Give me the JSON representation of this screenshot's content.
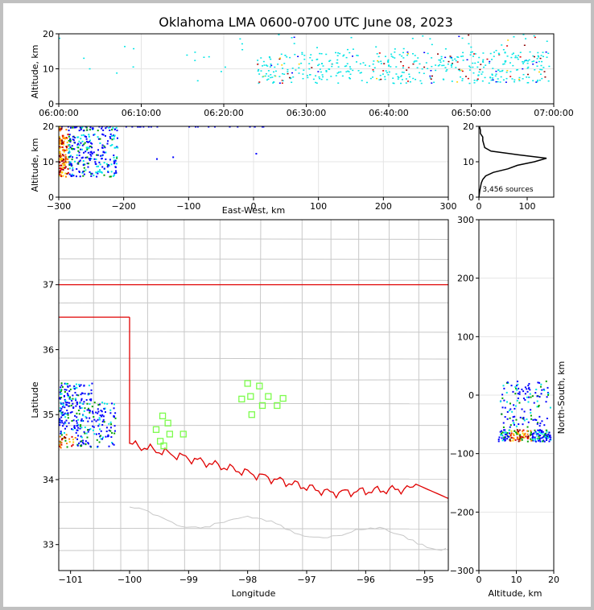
{
  "chart_data": [
    {
      "panel": "time-height",
      "type": "scatter",
      "title": "Oklahoma LMA 0600-0700 UTC June 08, 2023",
      "ylabel": "Altitude, km",
      "xlabel": "",
      "xlim": [
        "06:00:00",
        "07:00:00"
      ],
      "ylim": [
        0,
        20
      ],
      "xticks": [
        "06:00:00",
        "06:10:00",
        "06:20:00",
        "06:30:00",
        "06:40:00",
        "06:50:00",
        "07:00:00"
      ],
      "yticks": [
        "0",
        "10",
        "20"
      ],
      "grid": true,
      "points_summary": "VHF sources colored by time; sparse before 06:24, dense 06:24-06:59, altitudes mostly 6-15 km",
      "clusters": [
        {
          "t_start_min": 24,
          "t_end_min": 59.5,
          "alt_low_km": 6,
          "alt_high_km": 15
        }
      ]
    },
    {
      "panel": "east-west-height",
      "type": "scatter",
      "xlabel": "East-West, km",
      "ylabel": "Altitude, km",
      "xlim": [
        -300,
        300
      ],
      "ylim": [
        0,
        20
      ],
      "xticks": [
        "−300",
        "−200",
        "−100",
        "0",
        "100",
        "200",
        "300"
      ],
      "yticks": [
        "0",
        "10",
        "20"
      ],
      "grid": true,
      "clusters": [
        {
          "ew_start_km": -300,
          "ew_end_km": -215,
          "alt_low_km": 5,
          "alt_high_km": 20
        }
      ]
    },
    {
      "panel": "altitude-histogram",
      "type": "line",
      "xlim": [
        0,
        155
      ],
      "ylim": [
        0,
        20
      ],
      "xticks": [
        "0",
        "100"
      ],
      "yticks": [
        "0",
        "10",
        "20"
      ],
      "annotation": "3,456 sources",
      "profile": [
        {
          "alt": 0,
          "count": 0
        },
        {
          "alt": 2,
          "count": 2
        },
        {
          "alt": 4,
          "count": 5
        },
        {
          "alt": 5,
          "count": 8
        },
        {
          "alt": 6,
          "count": 14
        },
        {
          "alt": 7,
          "count": 30
        },
        {
          "alt": 8,
          "count": 60
        },
        {
          "alt": 9,
          "count": 80
        },
        {
          "alt": 10,
          "count": 115
        },
        {
          "alt": 11,
          "count": 140
        },
        {
          "alt": 12,
          "count": 80
        },
        {
          "alt": 13,
          "count": 25
        },
        {
          "alt": 14,
          "count": 12
        },
        {
          "alt": 15,
          "count": 10
        },
        {
          "alt": 16,
          "count": 8
        },
        {
          "alt": 17,
          "count": 8
        },
        {
          "alt": 18,
          "count": 3
        },
        {
          "alt": 19,
          "count": 3
        },
        {
          "alt": 20,
          "count": 1
        }
      ]
    },
    {
      "panel": "plan-view-map",
      "type": "scatter",
      "xlabel": "Longitude",
      "ylabel": "Latitude",
      "xlim": [
        -101.2,
        -94.6
      ],
      "ylim": [
        32.6,
        38.0
      ],
      "xticks": [
        "−101",
        "−100",
        "−99",
        "−98",
        "−97",
        "−96",
        "−95"
      ],
      "yticks": [
        "33",
        "34",
        "35",
        "36",
        "37"
      ],
      "state_border_color": "#e00000",
      "county_line_color": "#c8c8c8",
      "station_color": "#7cfc4c",
      "stations": [
        {
          "lon": -98.0,
          "lat": 35.48
        },
        {
          "lon": -97.8,
          "lat": 35.44
        },
        {
          "lon": -98.1,
          "lat": 35.24
        },
        {
          "lon": -97.95,
          "lat": 35.28
        },
        {
          "lon": -97.65,
          "lat": 35.28
        },
        {
          "lon": -97.4,
          "lat": 35.25
        },
        {
          "lon": -97.75,
          "lat": 35.14
        },
        {
          "lon": -97.5,
          "lat": 35.14
        },
        {
          "lon": -97.93,
          "lat": 35.0
        },
        {
          "lon": -99.44,
          "lat": 34.98
        },
        {
          "lon": -99.35,
          "lat": 34.87
        },
        {
          "lon": -99.55,
          "lat": 34.77
        },
        {
          "lon": -99.32,
          "lat": 34.7
        },
        {
          "lon": -99.09,
          "lat": 34.7
        },
        {
          "lon": -99.48,
          "lat": 34.59
        },
        {
          "lon": -99.42,
          "lat": 34.52
        }
      ],
      "source_clusters": [
        {
          "lon_low": -101.2,
          "lon_high": -100.3,
          "lat_low": 34.5,
          "lat_high": 35.5
        }
      ]
    },
    {
      "panel": "altitude-north-south",
      "type": "scatter",
      "xlabel": "Altitude, km",
      "ylabel": "North-South, km",
      "xlim": [
        0,
        20
      ],
      "ylim": [
        -300,
        300
      ],
      "xticks": [
        "0",
        "10",
        "20"
      ],
      "yticks": [
        "−300",
        "−200",
        "−100",
        "0",
        "100",
        "200",
        "300"
      ],
      "grid": true,
      "clusters": [
        {
          "alt_low_km": 5,
          "alt_high_km": 20,
          "ns_low_km": -85,
          "ns_high_km": 25
        }
      ]
    }
  ]
}
